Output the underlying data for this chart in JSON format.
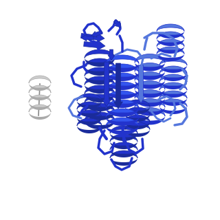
{
  "background_color": "#ffffff",
  "blue_dark": "#1a2b9b",
  "blue_mid": "#2233cc",
  "blue_bright": "#3355ee",
  "blue_light": "#5577dd",
  "gray_dark": "#888888",
  "gray_mid": "#aaaaaa",
  "gray_light": "#cccccc",
  "figsize": [
    3.2,
    3.2
  ],
  "dpi": 100
}
